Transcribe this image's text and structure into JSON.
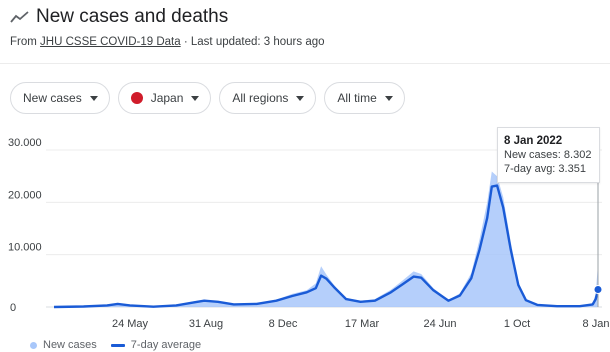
{
  "header": {
    "title": "New cases and deaths",
    "source_prefix": "From",
    "source_link": "JHU CSSE COVID-19 Data",
    "source_suffix": "· Last updated: 3 hours ago"
  },
  "filters": [
    {
      "label": "New cases"
    },
    {
      "label": "Japan"
    },
    {
      "label": "All regions"
    },
    {
      "label": "All time"
    }
  ],
  "colors": {
    "bar": "#a8c7fa",
    "line": "#1a5bd6",
    "flag": "#d01c2a"
  },
  "tooltip": {
    "date": "8 Jan 2022",
    "new_cases": "New cases: 8.302",
    "avg": "7-day avg: 3.351"
  },
  "legend": {
    "bars": "New cases",
    "line": "7-day average"
  },
  "chart_data": {
    "type": "area",
    "x_tick_labels": [
      "24 May",
      "31 Aug",
      "8 Dec",
      "17 Mar",
      "24 Jun",
      "1 Oct",
      "8 Jan"
    ],
    "y_tick_labels": [
      "0",
      "10.000",
      "20.000",
      "30.000"
    ],
    "ylim": [
      0,
      30000
    ],
    "grid": true,
    "legend_placement": "bottom-left",
    "series": [
      {
        "name": "7-day average",
        "x": [
          "2020-01-22",
          "2020-03-01",
          "2020-04-01",
          "2020-04-15",
          "2020-05-01",
          "2020-06-01",
          "2020-07-01",
          "2020-07-25",
          "2020-08-07",
          "2020-08-25",
          "2020-09-15",
          "2020-10-15",
          "2020-11-10",
          "2020-12-01",
          "2020-12-20",
          "2021-01-01",
          "2021-01-08",
          "2021-01-15",
          "2021-01-25",
          "2021-02-10",
          "2021-03-01",
          "2021-03-20",
          "2021-04-10",
          "2021-04-25",
          "2021-05-10",
          "2021-05-20",
          "2021-06-05",
          "2021-06-25",
          "2021-07-10",
          "2021-07-25",
          "2021-08-05",
          "2021-08-15",
          "2021-08-21",
          "2021-08-28",
          "2021-09-05",
          "2021-09-15",
          "2021-09-25",
          "2021-10-05",
          "2021-10-20",
          "2021-11-15",
          "2021-12-15",
          "2022-01-01",
          "2022-01-05",
          "2022-01-08"
        ],
        "y": [
          0,
          100,
          300,
          600,
          300,
          50,
          300,
          900,
          1200,
          1000,
          500,
          600,
          1200,
          2100,
          2800,
          3600,
          6000,
          5400,
          3800,
          1500,
          1000,
          1200,
          2800,
          4300,
          5800,
          5600,
          3200,
          1200,
          2200,
          5500,
          11000,
          17000,
          23000,
          23200,
          19000,
          11000,
          4200,
          1300,
          400,
          150,
          150,
          500,
          1500,
          3351
        ]
      },
      {
        "name": "New cases",
        "x": [
          "2020-01-22",
          "2020-03-01",
          "2020-04-01",
          "2020-04-15",
          "2020-05-01",
          "2020-06-01",
          "2020-07-01",
          "2020-07-25",
          "2020-08-07",
          "2020-08-25",
          "2020-09-15",
          "2020-10-15",
          "2020-11-10",
          "2020-12-01",
          "2020-12-20",
          "2021-01-01",
          "2021-01-08",
          "2021-01-15",
          "2021-01-25",
          "2021-02-10",
          "2021-03-01",
          "2021-03-20",
          "2021-04-10",
          "2021-04-25",
          "2021-05-10",
          "2021-05-20",
          "2021-06-05",
          "2021-06-25",
          "2021-07-10",
          "2021-07-25",
          "2021-08-05",
          "2021-08-15",
          "2021-08-21",
          "2021-08-28",
          "2021-09-05",
          "2021-09-15",
          "2021-09-25",
          "2021-10-05",
          "2021-10-20",
          "2021-11-15",
          "2021-12-15",
          "2022-01-01",
          "2022-01-05",
          "2022-01-08"
        ],
        "y": [
          0,
          150,
          400,
          700,
          350,
          60,
          400,
          1100,
          1400,
          1100,
          600,
          700,
          1400,
          2500,
          3200,
          4500,
          7800,
          6200,
          4200,
          1700,
          1200,
          1500,
          3300,
          5000,
          6800,
          6300,
          3600,
          1400,
          2600,
          6500,
          13000,
          20000,
          25900,
          25000,
          21000,
          12500,
          4800,
          1500,
          500,
          180,
          200,
          700,
          2500,
          8302
        ]
      }
    ]
  }
}
